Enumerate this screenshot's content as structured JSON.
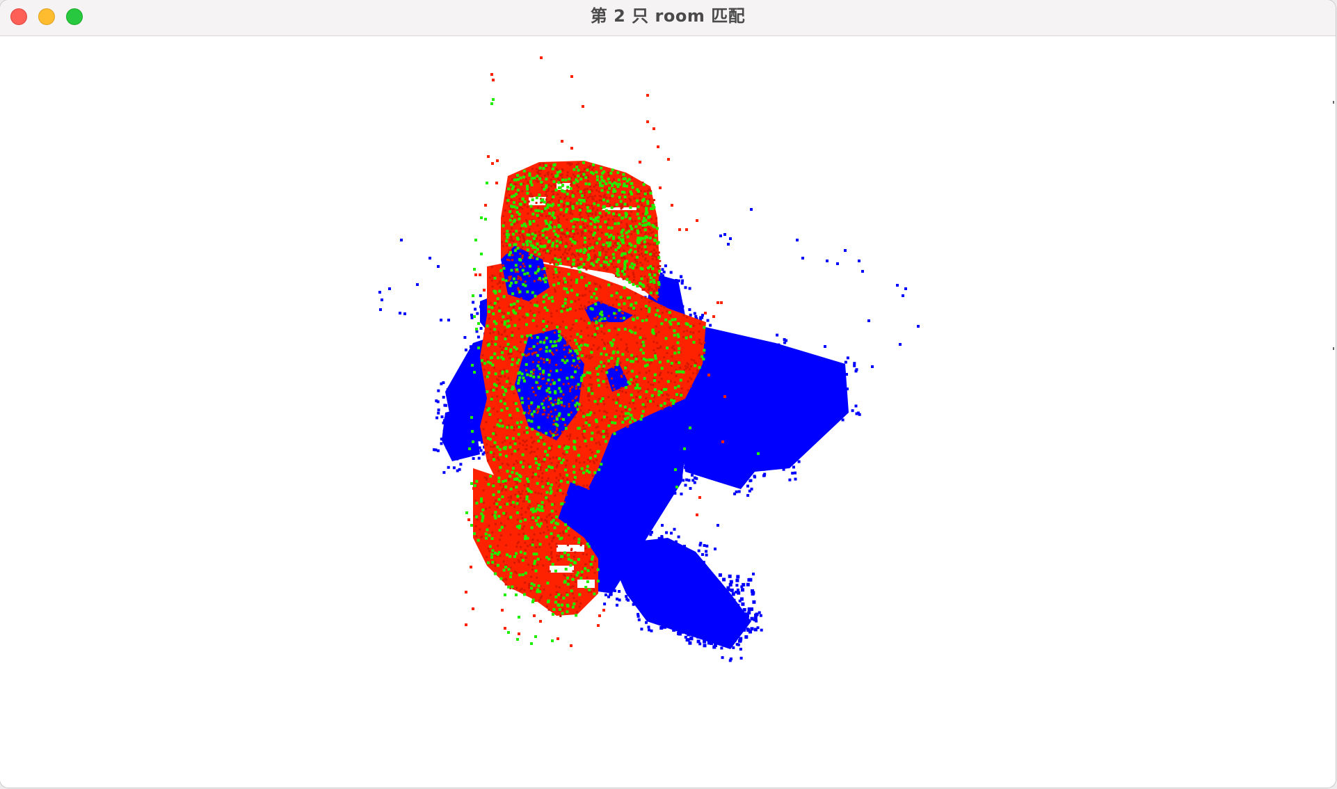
{
  "window": {
    "title": "第 2 只 room 匹配",
    "controls": {
      "close": "close-icon",
      "minimize": "minimize-icon",
      "zoom": "zoom-icon"
    }
  },
  "point_cloud": {
    "colors": {
      "reference": "#0000ff",
      "matched": "#ff2200",
      "inlier": "#22ee00"
    }
  }
}
